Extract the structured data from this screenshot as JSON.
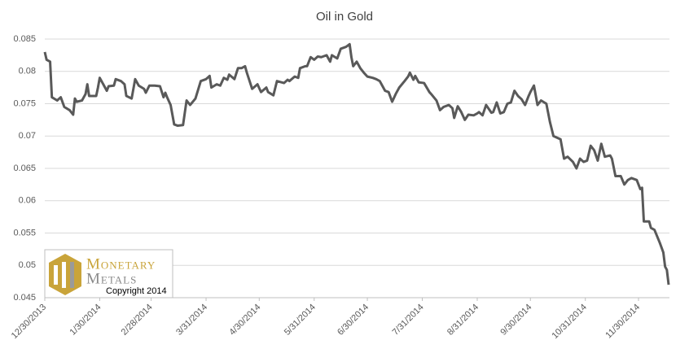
{
  "chart_data": {
    "type": "line",
    "title": "Oil in Gold",
    "color": "#595959",
    "grid": true,
    "xlim": [
      "12/30/2013",
      "12/17/2014"
    ],
    "xticks": [
      "12/30/2013",
      "1/30/2014",
      "2/28/2014",
      "3/31/2014",
      "4/30/2014",
      "5/31/2014",
      "6/30/2014",
      "7/31/2014",
      "8/31/2014",
      "9/30/2014",
      "10/31/2014",
      "11/30/2014"
    ],
    "ylim": [
      0.045,
      0.085
    ],
    "yticks": [
      0.045,
      0.05,
      0.055,
      0.06,
      0.065,
      0.07,
      0.075,
      0.08,
      0.085
    ],
    "x": [
      "12/30/2013",
      "12/31/2013",
      "1/2/2014",
      "1/3/2014",
      "1/6/2014",
      "1/8/2014",
      "1/10/2014",
      "1/13/2014",
      "1/15/2014",
      "1/16/2014",
      "1/17/2014",
      "1/20/2014",
      "1/22/2014",
      "1/23/2014",
      "1/24/2014",
      "1/28/2014",
      "1/29/2014",
      "1/30/2014",
      "2/1/2014",
      "2/3/2014",
      "2/4/2014",
      "2/7/2014",
      "2/8/2014",
      "2/11/2014",
      "2/13/2014",
      "2/14/2014",
      "2/17/2014",
      "2/19/2014",
      "2/21/2014",
      "2/24/2014",
      "2/25/2014",
      "2/27/2014",
      "3/2/2014",
      "3/5/2014",
      "3/7/2014",
      "3/8/2014",
      "3/9/2014",
      "3/11/2014",
      "3/13/2014",
      "3/15/2014",
      "3/18/2014",
      "3/20/2014",
      "3/22/2014",
      "3/25/2014",
      "3/28/2014",
      "3/31/2014",
      "4/2/2014",
      "4/3/2014",
      "4/6/2014",
      "4/8/2014",
      "4/10/2014",
      "4/12/2014",
      "4/13/2014",
      "4/16/2014",
      "4/18/2014",
      "4/20/2014",
      "4/22/2014",
      "4/23/2014",
      "4/26/2014",
      "4/29/2014",
      "5/1/2014",
      "5/4/2014",
      "5/5/2014",
      "5/8/2014",
      "5/10/2014",
      "5/14/2014",
      "5/16/2014",
      "5/17/2014",
      "5/20/2014",
      "5/22/2014",
      "5/23/2014",
      "5/26/2014",
      "5/27/2014",
      "5/29/2014",
      "5/31/2014",
      "6/2/2014",
      "6/4/2014",
      "6/7/2014",
      "6/9/2014",
      "6/10/2014",
      "6/13/2014",
      "6/15/2014",
      "6/18/2014",
      "6/20/2014",
      "6/21/2014",
      "6/22/2014",
      "6/24/2014",
      "6/26/2014",
      "6/28/2014",
      "6/30/2014",
      "7/3/2014",
      "7/5/2014",
      "7/7/2014",
      "7/10/2014",
      "7/12/2014",
      "7/14/2014",
      "7/16/2014",
      "7/18/2014",
      "7/21/2014",
      "7/23/2014",
      "7/24/2014",
      "7/26/2014",
      "7/27/2014",
      "7/29/2014",
      "8/1/2014",
      "8/4/2014",
      "8/5/2014",
      "8/8/2014",
      "8/10/2014",
      "8/12/2014",
      "8/15/2014",
      "8/17/2014",
      "8/18/2014",
      "8/20/2014",
      "8/22/2014",
      "8/24/2014",
      "8/26/2014",
      "8/29/2014",
      "8/31/2014",
      "9/1/2014",
      "9/3/2014",
      "9/5/2014",
      "9/8/2014",
      "9/9/2014",
      "9/11/2014",
      "9/13/2014",
      "9/15/2014",
      "9/17/2014",
      "9/19/2014",
      "9/21/2014",
      "9/23/2014",
      "9/25/2014",
      "9/27/2014",
      "9/29/2014",
      "9/30/2014",
      "10/2/2014",
      "10/4/2014",
      "10/6/2014",
      "10/9/2014",
      "10/11/2014",
      "10/13/2014",
      "10/17/2014",
      "10/19/2014",
      "10/21/2014",
      "10/24/2014",
      "10/26/2014",
      "10/28/2014",
      "10/30/2014",
      "11/1/2014",
      "11/3/2014",
      "11/5/2014",
      "11/7/2014",
      "11/9/2014",
      "11/11/2014",
      "11/14/2014",
      "11/15/2014",
      "11/17/2014",
      "11/20/2014",
      "11/22/2014",
      "11/24/2014",
      "11/26/2014",
      "11/29/2014",
      "12/1/2014",
      "12/2/2014",
      "12/3/2014",
      "12/6/2014",
      "12/7/2014",
      "12/9/2014",
      "12/12/2014",
      "12/14/2014",
      "12/15/2014",
      "12/16/2014",
      "12/17/2014"
    ],
    "values": [
      0.083,
      0.0818,
      0.0815,
      0.076,
      0.0755,
      0.076,
      0.0745,
      0.074,
      0.0733,
      0.0758,
      0.0753,
      0.0755,
      0.0765,
      0.078,
      0.0762,
      0.0762,
      0.0775,
      0.079,
      0.078,
      0.077,
      0.0777,
      0.0778,
      0.0788,
      0.0785,
      0.078,
      0.0762,
      0.0758,
      0.0788,
      0.0778,
      0.0773,
      0.0767,
      0.0778,
      0.0778,
      0.0777,
      0.076,
      0.0767,
      0.076,
      0.0748,
      0.0718,
      0.0716,
      0.0717,
      0.0755,
      0.0748,
      0.0758,
      0.0785,
      0.0788,
      0.0793,
      0.0775,
      0.078,
      0.0778,
      0.079,
      0.0787,
      0.0795,
      0.0788,
      0.0805,
      0.0805,
      0.0808,
      0.0798,
      0.0773,
      0.078,
      0.0768,
      0.0775,
      0.0768,
      0.0763,
      0.0785,
      0.0782,
      0.0787,
      0.0785,
      0.0792,
      0.079,
      0.0805,
      0.0808,
      0.0808,
      0.0822,
      0.0818,
      0.0823,
      0.0822,
      0.0825,
      0.0815,
      0.0825,
      0.082,
      0.0835,
      0.0838,
      0.0842,
      0.0822,
      0.0808,
      0.0815,
      0.0805,
      0.0798,
      0.0792,
      0.079,
      0.0788,
      0.0785,
      0.077,
      0.0768,
      0.0753,
      0.0765,
      0.0775,
      0.0785,
      0.0792,
      0.0798,
      0.0787,
      0.0793,
      0.0783,
      0.0782,
      0.0768,
      0.0765,
      0.0755,
      0.074,
      0.0745,
      0.0748,
      0.0743,
      0.0728,
      0.0746,
      0.0737,
      0.0725,
      0.0733,
      0.0732,
      0.0735,
      0.0737,
      0.0732,
      0.0748,
      0.0736,
      0.0737,
      0.0752,
      0.0735,
      0.0737,
      0.075,
      0.0752,
      0.077,
      0.0762,
      0.0757,
      0.0748,
      0.0762,
      0.0768,
      0.0778,
      0.0748,
      0.0755,
      0.075,
      0.0722,
      0.07,
      0.0695,
      0.0665,
      0.0668,
      0.066,
      0.065,
      0.0665,
      0.066,
      0.0662,
      0.0685,
      0.0678,
      0.0662,
      0.0688,
      0.0668,
      0.067,
      0.0665,
      0.0638,
      0.0638,
      0.0625,
      0.0632,
      0.0635,
      0.0632,
      0.0618,
      0.062,
      0.0568,
      0.0568,
      0.0558,
      0.0555,
      0.0535,
      0.052,
      0.0498,
      0.0493,
      0.047
    ]
  },
  "logo": {
    "line1": "Monetary",
    "line2": "Metals",
    "copyright": "Copyright 2014"
  }
}
